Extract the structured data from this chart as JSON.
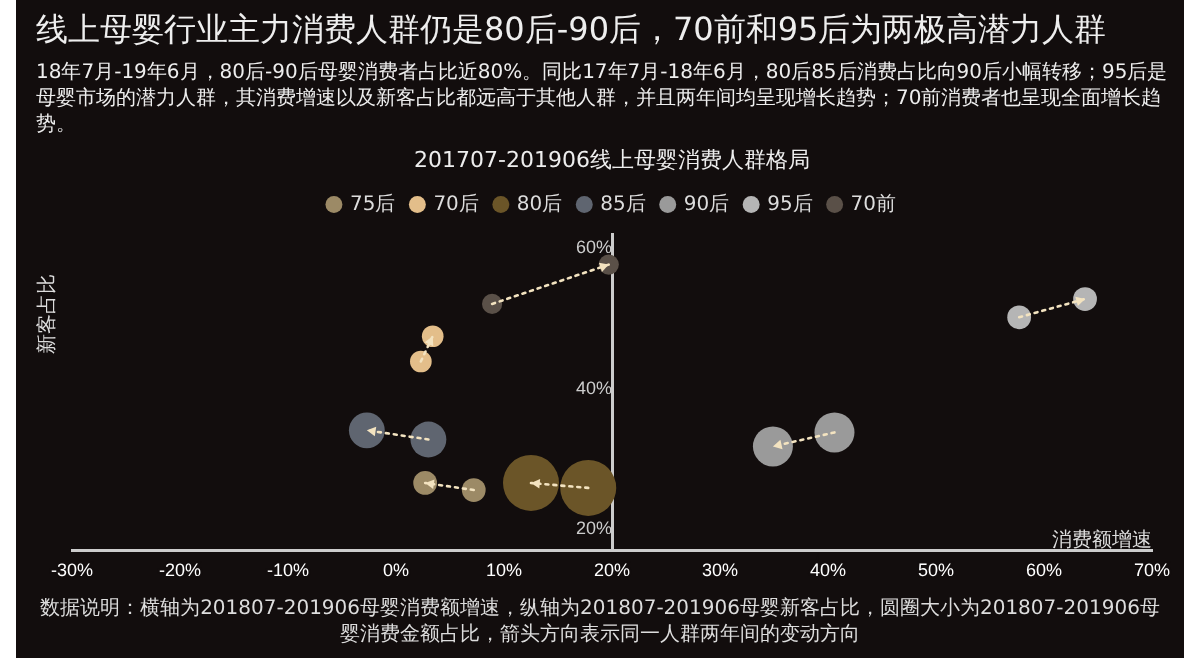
{
  "chart_data": {
    "type": "bubble",
    "title": "线上母婴行业主力消费人群仍是80后-90后，70前和95后为两极高潜力人群",
    "subtitle": "18年7月-19年6月，80后-90后母婴消费者占比近80%。同比17年7月-18年6月，80后85后消费占比向90后小幅转移；95后是母婴市场的潜力人群，其消费增速以及新客占比都远高于其他人群，并且两年间均呈现增长趋势；70前消费者也呈现全面增长趋势。",
    "annotations": [
      "201707-201906线上母婴消费人群格局",
      "数据说明：横轴为201807-201906母婴消费额增速，纵轴为201807-201906母婴新客占比，圆圈大小为201807-201906母婴消费金额占比，箭头方向表示同一人群两年间的变动方向"
    ],
    "xlabel": "消费额增速",
    "ylabel": "新客占比",
    "series": [
      {
        "name": "75后",
        "color": "#9c8a66",
        "x": [
          7.2,
          2.7
        ],
        "values": [
          25.6,
          26.6
        ],
        "sizes": [
          0.18,
          0.18
        ]
      },
      {
        "name": "70后",
        "color": "#e3be8a",
        "x": [
          2.3,
          3.4
        ],
        "values": [
          43.9,
          47.5
        ],
        "sizes": [
          0.15,
          0.15
        ]
      },
      {
        "name": "80后",
        "color": "#6b5528",
        "x": [
          17.8,
          12.5
        ],
        "values": [
          25.9,
          26.6
        ],
        "sizes": [
          1,
          1
        ]
      },
      {
        "name": "85后",
        "color": "#5f6570",
        "x": [
          3.0,
          -2.7
        ],
        "values": [
          32.8,
          34.1
        ],
        "sizes": [
          0.41,
          0.41
        ]
      },
      {
        "name": "90后",
        "color": "#9a9a9a",
        "x": [
          40.6,
          34.9
        ],
        "values": [
          33.8,
          31.8
        ],
        "sizes": [
          0.51,
          0.51
        ]
      },
      {
        "name": "95后",
        "color": "#b5b5b5",
        "x": [
          57.7,
          63.8
        ],
        "values": [
          50.2,
          52.8
        ],
        "sizes": [
          0.18,
          0.18
        ]
      },
      {
        "name": "70前",
        "color": "#5a5048",
        "x": [
          8.9,
          19.7
        ],
        "values": [
          52.1,
          57.7
        ],
        "sizes": [
          0.13,
          0.13
        ]
      }
    ],
    "xlim": [
      -30,
      70
    ],
    "xticks": [
      {
        "value": -30,
        "label": "-30%"
      },
      {
        "value": -20,
        "label": "-20%"
      },
      {
        "value": -10,
        "label": "-10%"
      },
      {
        "value": 0,
        "label": "0%"
      },
      {
        "value": 10,
        "label": "10%"
      },
      {
        "value": 20,
        "label": "20%"
      },
      {
        "value": 30,
        "label": "30%"
      },
      {
        "value": 40,
        "label": "40%"
      },
      {
        "value": 50,
        "label": "50%"
      },
      {
        "value": 60,
        "label": "60%"
      },
      {
        "value": 70,
        "label": "70%"
      }
    ],
    "ylim": [
      17,
      62
    ],
    "yticks": [
      {
        "value": 20,
        "label": "20%"
      },
      {
        "value": 40,
        "label": "40%"
      },
      {
        "value": 60,
        "label": "60%"
      }
    ],
    "grid": false,
    "legend": "top",
    "line_style": "dotted"
  }
}
